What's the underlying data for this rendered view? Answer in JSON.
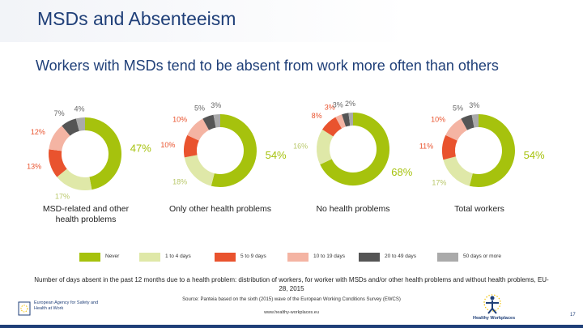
{
  "slide": {
    "title": "MSDs and Absenteeism",
    "subtitle": "Workers with MSDs tend to be absent from work more often than others",
    "caption": "Number of days absent in the past 12 months due to a health problem: distribution of workers, for worker with MSDs and/or other health problems and without health problems, EU-28, 2015",
    "source": "Source: Panteia based on the sixth (2015) wave of the European Working Conditions Survey (EWCS)",
    "url": "www.healthy-workplaces.eu",
    "page_number": "17"
  },
  "logos": {
    "agency_text": "European Agency for Safety and Health at Work",
    "campaign_text": "Healthy Workplaces",
    "agency_color": "#1f3f78"
  },
  "chart_data": {
    "type": "donut",
    "legend": [
      {
        "name": "Never",
        "color": "#a6c20d"
      },
      {
        "name": "1 to 4 days",
        "color": "#dfe8a8"
      },
      {
        "name": "5 to 9 days",
        "color": "#e9532e"
      },
      {
        "name": "10 to 19 days",
        "color": "#f4b4a3"
      },
      {
        "name": "20 to 49 days",
        "color": "#555555"
      },
      {
        "name": "50 days or more",
        "color": "#aaaaaa"
      }
    ],
    "charts": [
      {
        "name": "MSD-related and other health problems",
        "values": [
          47,
          17,
          13,
          12,
          7,
          4
        ],
        "labels": [
          "47%",
          "17%",
          "13%",
          "12%",
          "7%",
          "4%"
        ]
      },
      {
        "name": "Only other health problems",
        "values": [
          54,
          18,
          10,
          10,
          5,
          3
        ],
        "labels": [
          "54%",
          "18%",
          "10%",
          "10%",
          "5%",
          "3%"
        ]
      },
      {
        "name": "No health problems",
        "values": [
          68,
          16,
          8,
          3,
          3,
          2
        ],
        "labels": [
          "68%",
          "16%",
          "8%",
          "3%",
          "3%",
          "2%"
        ]
      },
      {
        "name": "Total workers",
        "values": [
          54,
          17,
          11,
          10,
          5,
          3
        ],
        "labels": [
          "54%",
          "17%",
          "11%",
          "10%",
          "5%",
          "3%"
        ]
      }
    ]
  }
}
